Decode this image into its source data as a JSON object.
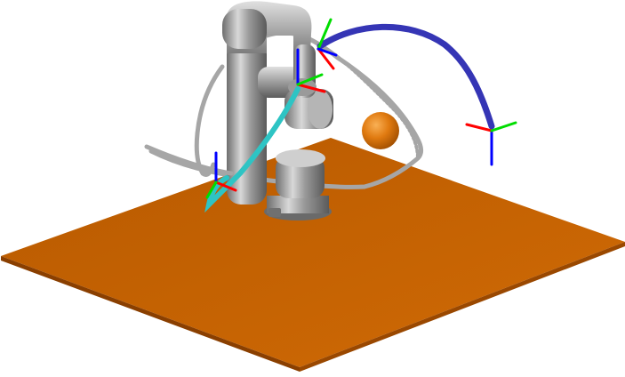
{
  "scene": {
    "colors": {
      "background": "#ffffff",
      "floor_top": "#cc6600",
      "floor_top_light": "#d4700a",
      "floor_edge": "#8a3f00",
      "robot_base": "#8c8c8c",
      "robot_light": "#d6d6d6",
      "robot_dark": "#555555",
      "ball": "#e07a10",
      "ball_highlight": "#f5a040",
      "trajectory_blue": "#3535b5",
      "trajectory_teal": "#2ec4c4",
      "trajectory_gray": "#a6a6a6",
      "axis_x": "#ff0000",
      "axis_y": "#00dd00",
      "axis_z": "#0000ff"
    },
    "objects": [
      "floor-plane",
      "robot-arm",
      "target-ball",
      "trajectory-gray",
      "trajectory-teal",
      "trajectory-blue",
      "frame-base",
      "frame-end-effector",
      "frame-upper",
      "frame-goal"
    ]
  }
}
